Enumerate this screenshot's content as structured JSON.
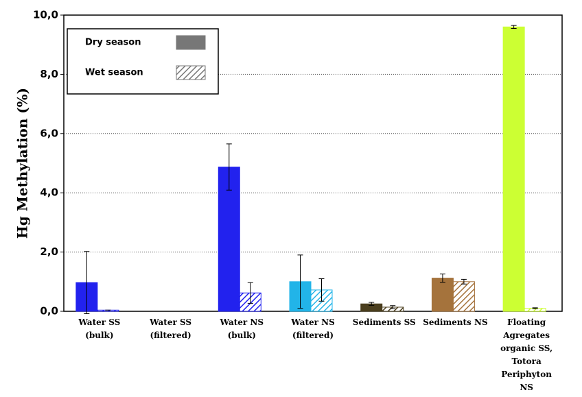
{
  "chart_data": {
    "type": "bar",
    "y_label": "Hg Methylation (%)",
    "categories": [
      "Water SS\n(bulk)",
      "Water SS\n(filtered)",
      "Water NS\n(bulk)",
      "Water NS\n(filtered)",
      "Sediments SS",
      "Sediments NS",
      "Floating\nAgregates\norganic SS,\nTotora\nPeriphyton\nNS"
    ],
    "colors": [
      "#2222ee",
      "#2222ee",
      "#2222ee",
      "#22b4e8",
      "#4a3e1e",
      "#a5733c",
      "#ccff33"
    ],
    "series": [
      {
        "name": "Dry season",
        "pattern": "solid",
        "legend_color": "#777777",
        "values": [
          0.97,
          null,
          4.87,
          1.0,
          0.25,
          1.12,
          9.6
        ],
        "errors": [
          1.05,
          null,
          0.78,
          0.9,
          0.05,
          0.14,
          0.05
        ]
      },
      {
        "name": "Wet season",
        "pattern": "hatch",
        "legend_color": "#777777",
        "values": [
          0.04,
          null,
          0.62,
          0.72,
          0.14,
          1.0,
          0.1
        ],
        "errors": [
          0.0,
          null,
          0.35,
          0.38,
          0.05,
          0.08,
          0.02
        ]
      }
    ],
    "ylim": [
      0,
      10
    ],
    "yticks": [
      {
        "value": 0,
        "label": "0,0"
      },
      {
        "value": 2,
        "label": "2,0"
      },
      {
        "value": 4,
        "label": "4,0"
      },
      {
        "value": 6,
        "label": "6,0"
      },
      {
        "value": 8,
        "label": "8,0"
      },
      {
        "value": 10,
        "label": "10,0"
      }
    ],
    "grid": true,
    "legend": "upper left"
  }
}
